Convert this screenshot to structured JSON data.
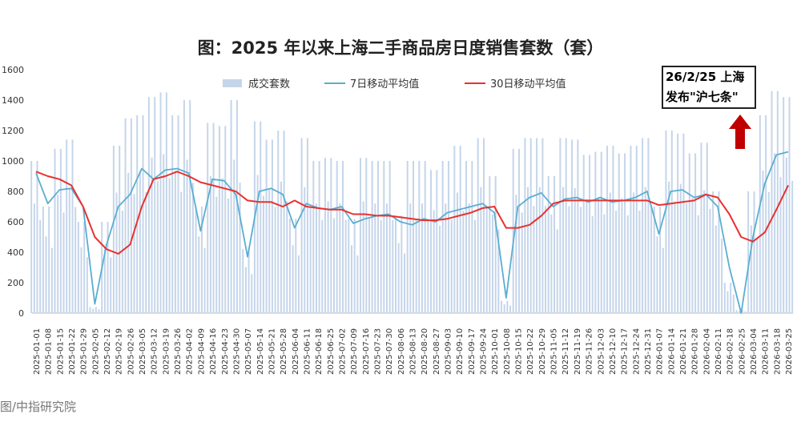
{
  "chart_data": {
    "type": "bar+line",
    "title": "图：2025 年以来上海二手商品房日度销售套数（套）",
    "ylim": [
      0,
      1600
    ],
    "yticks": [
      0,
      200,
      400,
      600,
      800,
      1000,
      1200,
      1400,
      1600
    ],
    "legend": [
      "成交套数",
      "7日移动平均值",
      "30日移动平均值"
    ],
    "legend_placement": "top-center",
    "colors": {
      "bars": "#c5d5ea",
      "ma7": "#5aaed0",
      "ma30": "#e8312f",
      "arrow": "#c00000"
    },
    "categories": [
      "2025-01-01",
      "2025-01-08",
      "2025-01-15",
      "2025-01-22",
      "2025-01-29",
      "2025-02-05",
      "2025-02-12",
      "2025-02-19",
      "2025-02-26",
      "2025-03-05",
      "2025-03-12",
      "2025-03-19",
      "2025-03-26",
      "2025-04-02",
      "2025-04-09",
      "2025-04-16",
      "2025-04-23",
      "2025-04-30",
      "2025-05-07",
      "2025-05-14",
      "2025-05-21",
      "2025-05-28",
      "2025-06-04",
      "2025-06-11",
      "2025-06-18",
      "2025-06-25",
      "2025-07-02",
      "2025-07-09",
      "2025-07-16",
      "2025-07-23",
      "2025-07-30",
      "2025-08-06",
      "2025-08-13",
      "2025-08-20",
      "2025-08-27",
      "2025-09-03",
      "2025-09-10",
      "2025-09-17",
      "2025-09-24",
      "2025-10-01",
      "2025-10-08",
      "2025-10-15",
      "2025-10-22",
      "2025-10-29",
      "2025-11-05",
      "2025-11-12",
      "2025-11-19",
      "2025-11-26",
      "2025-12-03",
      "2025-12-10",
      "2025-12-17",
      "2025-12-24",
      "2025-12-31",
      "2026-01-07",
      "2026-01-14",
      "2026-01-21",
      "2026-01-28",
      "2026-02-04",
      "2026-02-11",
      "2026-02-18",
      "2026-02-25",
      "2026-03-04",
      "2026-03-11",
      "2026-03-18",
      "2026-03-25"
    ],
    "series": [
      {
        "name": "成交套数",
        "type": "bar",
        "values": [
          1000,
          700,
          1080,
          1140,
          600,
          40,
          600,
          1100,
          1280,
          1300,
          1420,
          1450,
          1300,
          1400,
          700,
          1250,
          1230,
          1400,
          420,
          1260,
          1140,
          1200,
          620,
          1150,
          1000,
          1020,
          1000,
          620,
          1020,
          1000,
          1000,
          640,
          1000,
          1000,
          940,
          1000,
          1100,
          1000,
          1150,
          900,
          80,
          1080,
          1150,
          1150,
          900,
          1150,
          1140,
          1040,
          1060,
          1100,
          1050,
          1100,
          1150,
          700,
          1200,
          1180,
          1050,
          1120,
          800,
          200,
          20,
          800,
          1300,
          1460,
          1420
        ]
      },
      {
        "name": "7日移动平均值",
        "type": "line",
        "values": [
          920,
          720,
          810,
          820,
          700,
          60,
          450,
          700,
          780,
          950,
          880,
          940,
          950,
          920,
          540,
          880,
          870,
          780,
          370,
          800,
          820,
          780,
          560,
          720,
          690,
          680,
          700,
          590,
          620,
          640,
          650,
          600,
          580,
          620,
          600,
          660,
          680,
          700,
          720,
          660,
          100,
          700,
          760,
          790,
          700,
          750,
          760,
          730,
          760,
          730,
          740,
          760,
          800,
          520,
          800,
          810,
          760,
          780,
          700,
          300,
          0,
          500,
          850,
          1040,
          1060
        ]
      },
      {
        "name": "30日移动平均值",
        "type": "line",
        "values": [
          930,
          900,
          880,
          840,
          700,
          500,
          420,
          390,
          450,
          700,
          880,
          900,
          930,
          900,
          860,
          840,
          820,
          800,
          740,
          730,
          730,
          700,
          740,
          700,
          690,
          680,
          680,
          650,
          650,
          640,
          640,
          630,
          620,
          610,
          610,
          620,
          640,
          660,
          690,
          700,
          560,
          560,
          580,
          640,
          720,
          740,
          740,
          740,
          740,
          740,
          740,
          740,
          740,
          710,
          720,
          730,
          740,
          780,
          760,
          650,
          500,
          470,
          530,
          680,
          840
        ]
      }
    ]
  },
  "annotation": {
    "line1": "26/2/25 上海",
    "line2": "发布\"沪七条\""
  },
  "source": "图/中指研究院"
}
